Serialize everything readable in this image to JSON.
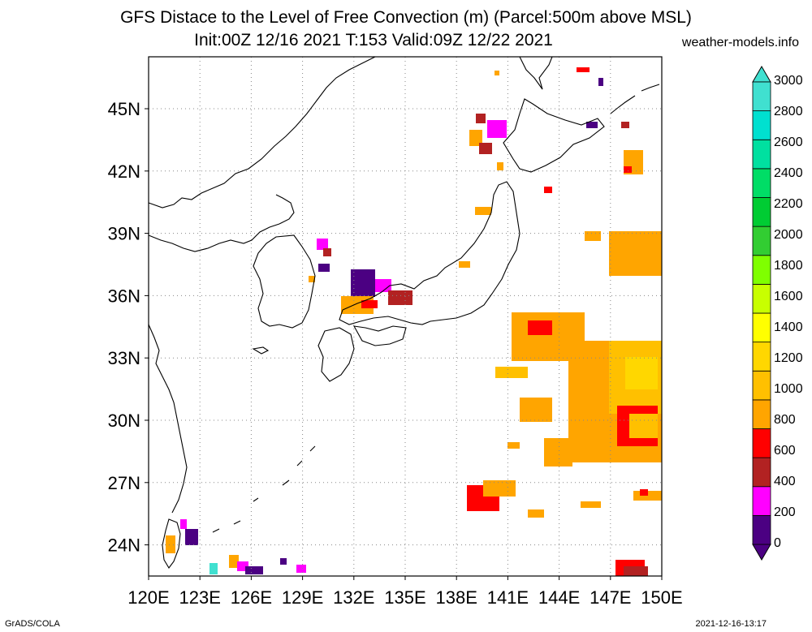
{
  "header": {
    "title_line1": "GFS Distace to the Level of Free Convection (m) (Parcel:500m above MSL)",
    "title_line2": "Init:00Z 12/16 2021 T:153 Valid:09Z 12/22 2021",
    "site": "weather-models.info"
  },
  "footer": {
    "left": "GrADS/COLA",
    "right": "2021-12-16-13:17"
  },
  "map": {
    "lon_range": [
      120,
      150
    ],
    "lat_range": [
      22.5,
      47.5
    ],
    "lat_labels": [
      "24N",
      "27N",
      "30N",
      "33N",
      "36N",
      "39N",
      "42N",
      "45N"
    ],
    "lat_values": [
      24,
      27,
      30,
      33,
      36,
      39,
      42,
      45
    ],
    "lon_labels": [
      "120E",
      "123E",
      "126E",
      "129E",
      "132E",
      "135E",
      "138E",
      "141E",
      "144E",
      "147E",
      "150E"
    ],
    "lon_values": [
      120,
      123,
      126,
      129,
      132,
      135,
      138,
      141,
      144,
      147,
      150
    ],
    "gridlines": true
  },
  "colorbar": {
    "levels": [
      "0",
      "200",
      "400",
      "600",
      "800",
      "1000",
      "1200",
      "1400",
      "1600",
      "1800",
      "2000",
      "2200",
      "2400",
      "2600",
      "2800",
      "3000"
    ],
    "colors": [
      "#4b0082",
      "#ff00ff",
      "#b22222",
      "#ff0000",
      "#ffa500",
      "#ffc000",
      "#ffd700",
      "#ffff00",
      "#c8ff00",
      "#7fff00",
      "#32cd32",
      "#00cc33",
      "#00dd66",
      "#00e0a0",
      "#00e0d0",
      "#40e0d0"
    ]
  }
}
